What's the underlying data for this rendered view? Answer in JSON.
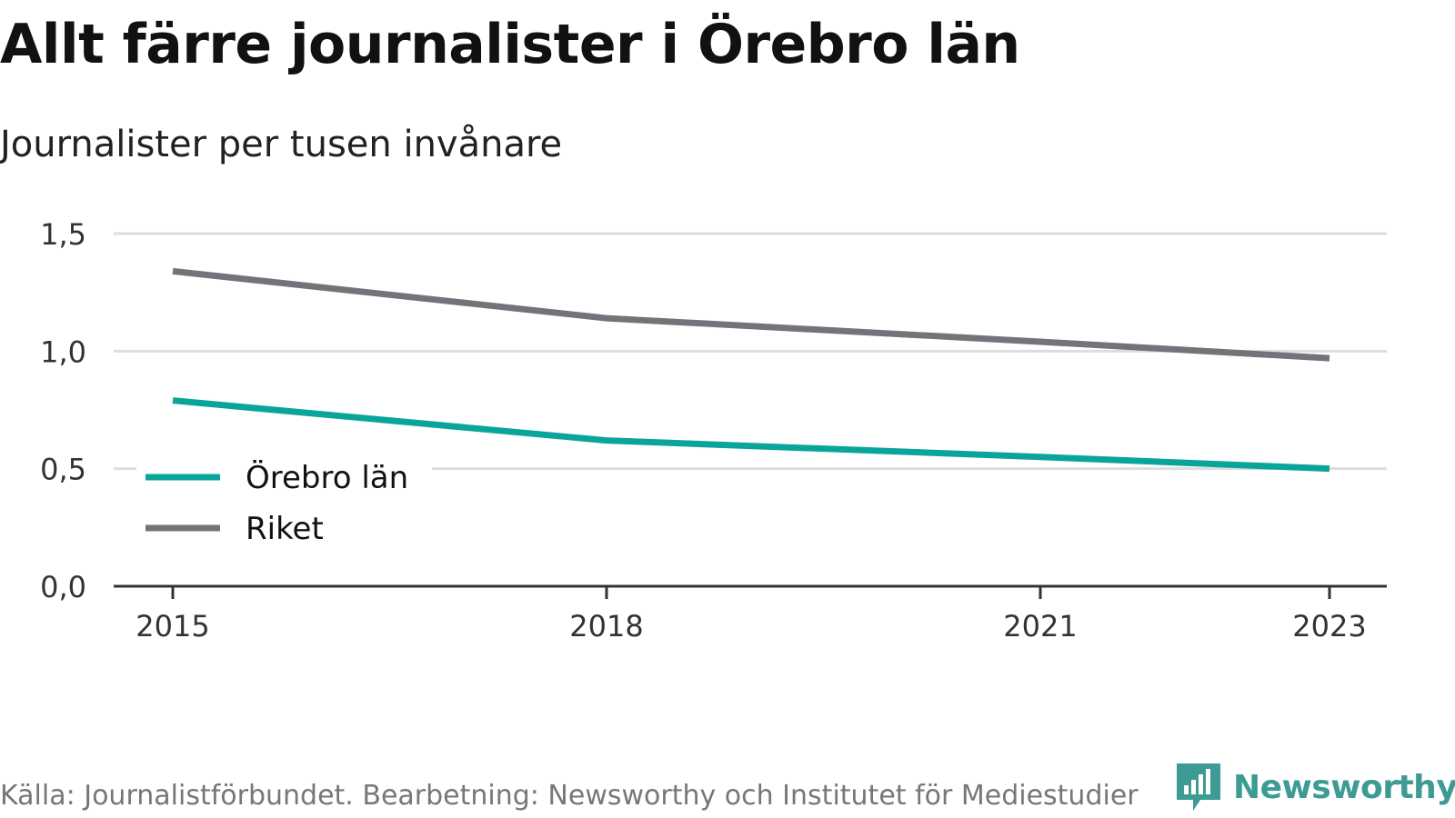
{
  "header": {
    "title": "Allt färre journalister i Örebro län",
    "subtitle": "Journalister per tusen invånare"
  },
  "footer": {
    "source": "Källa: Journalistförbundet. Bearbetning: Newsworthy och Institutet för Mediestudier",
    "brand": "Newsworthy",
    "brand_icon": "newsworthy-logo-icon",
    "brand_color": "#3d9b93"
  },
  "chart_data": {
    "type": "line",
    "x": [
      2015,
      2018,
      2021,
      2023
    ],
    "x_tick_labels": [
      "2015",
      "2018",
      "2021",
      "2023"
    ],
    "y_ticks": [
      0,
      0.5,
      1.0,
      1.5
    ],
    "y_tick_labels": [
      "0,0",
      "0,5",
      "1,0",
      "1,5"
    ],
    "ylim": [
      0,
      1.5
    ],
    "grid": true,
    "legend_position": "bottom-left",
    "series": [
      {
        "name": "Örebro län",
        "color": "#0aa59a",
        "x": [
          2015,
          2018,
          2021,
          2023
        ],
        "values": [
          0.79,
          0.62,
          0.55,
          0.5
        ]
      },
      {
        "name": "Riket",
        "color": "#74737a",
        "x": [
          2015,
          2018,
          2021,
          2023
        ],
        "values": [
          1.34,
          1.14,
          1.04,
          0.97
        ]
      }
    ]
  }
}
